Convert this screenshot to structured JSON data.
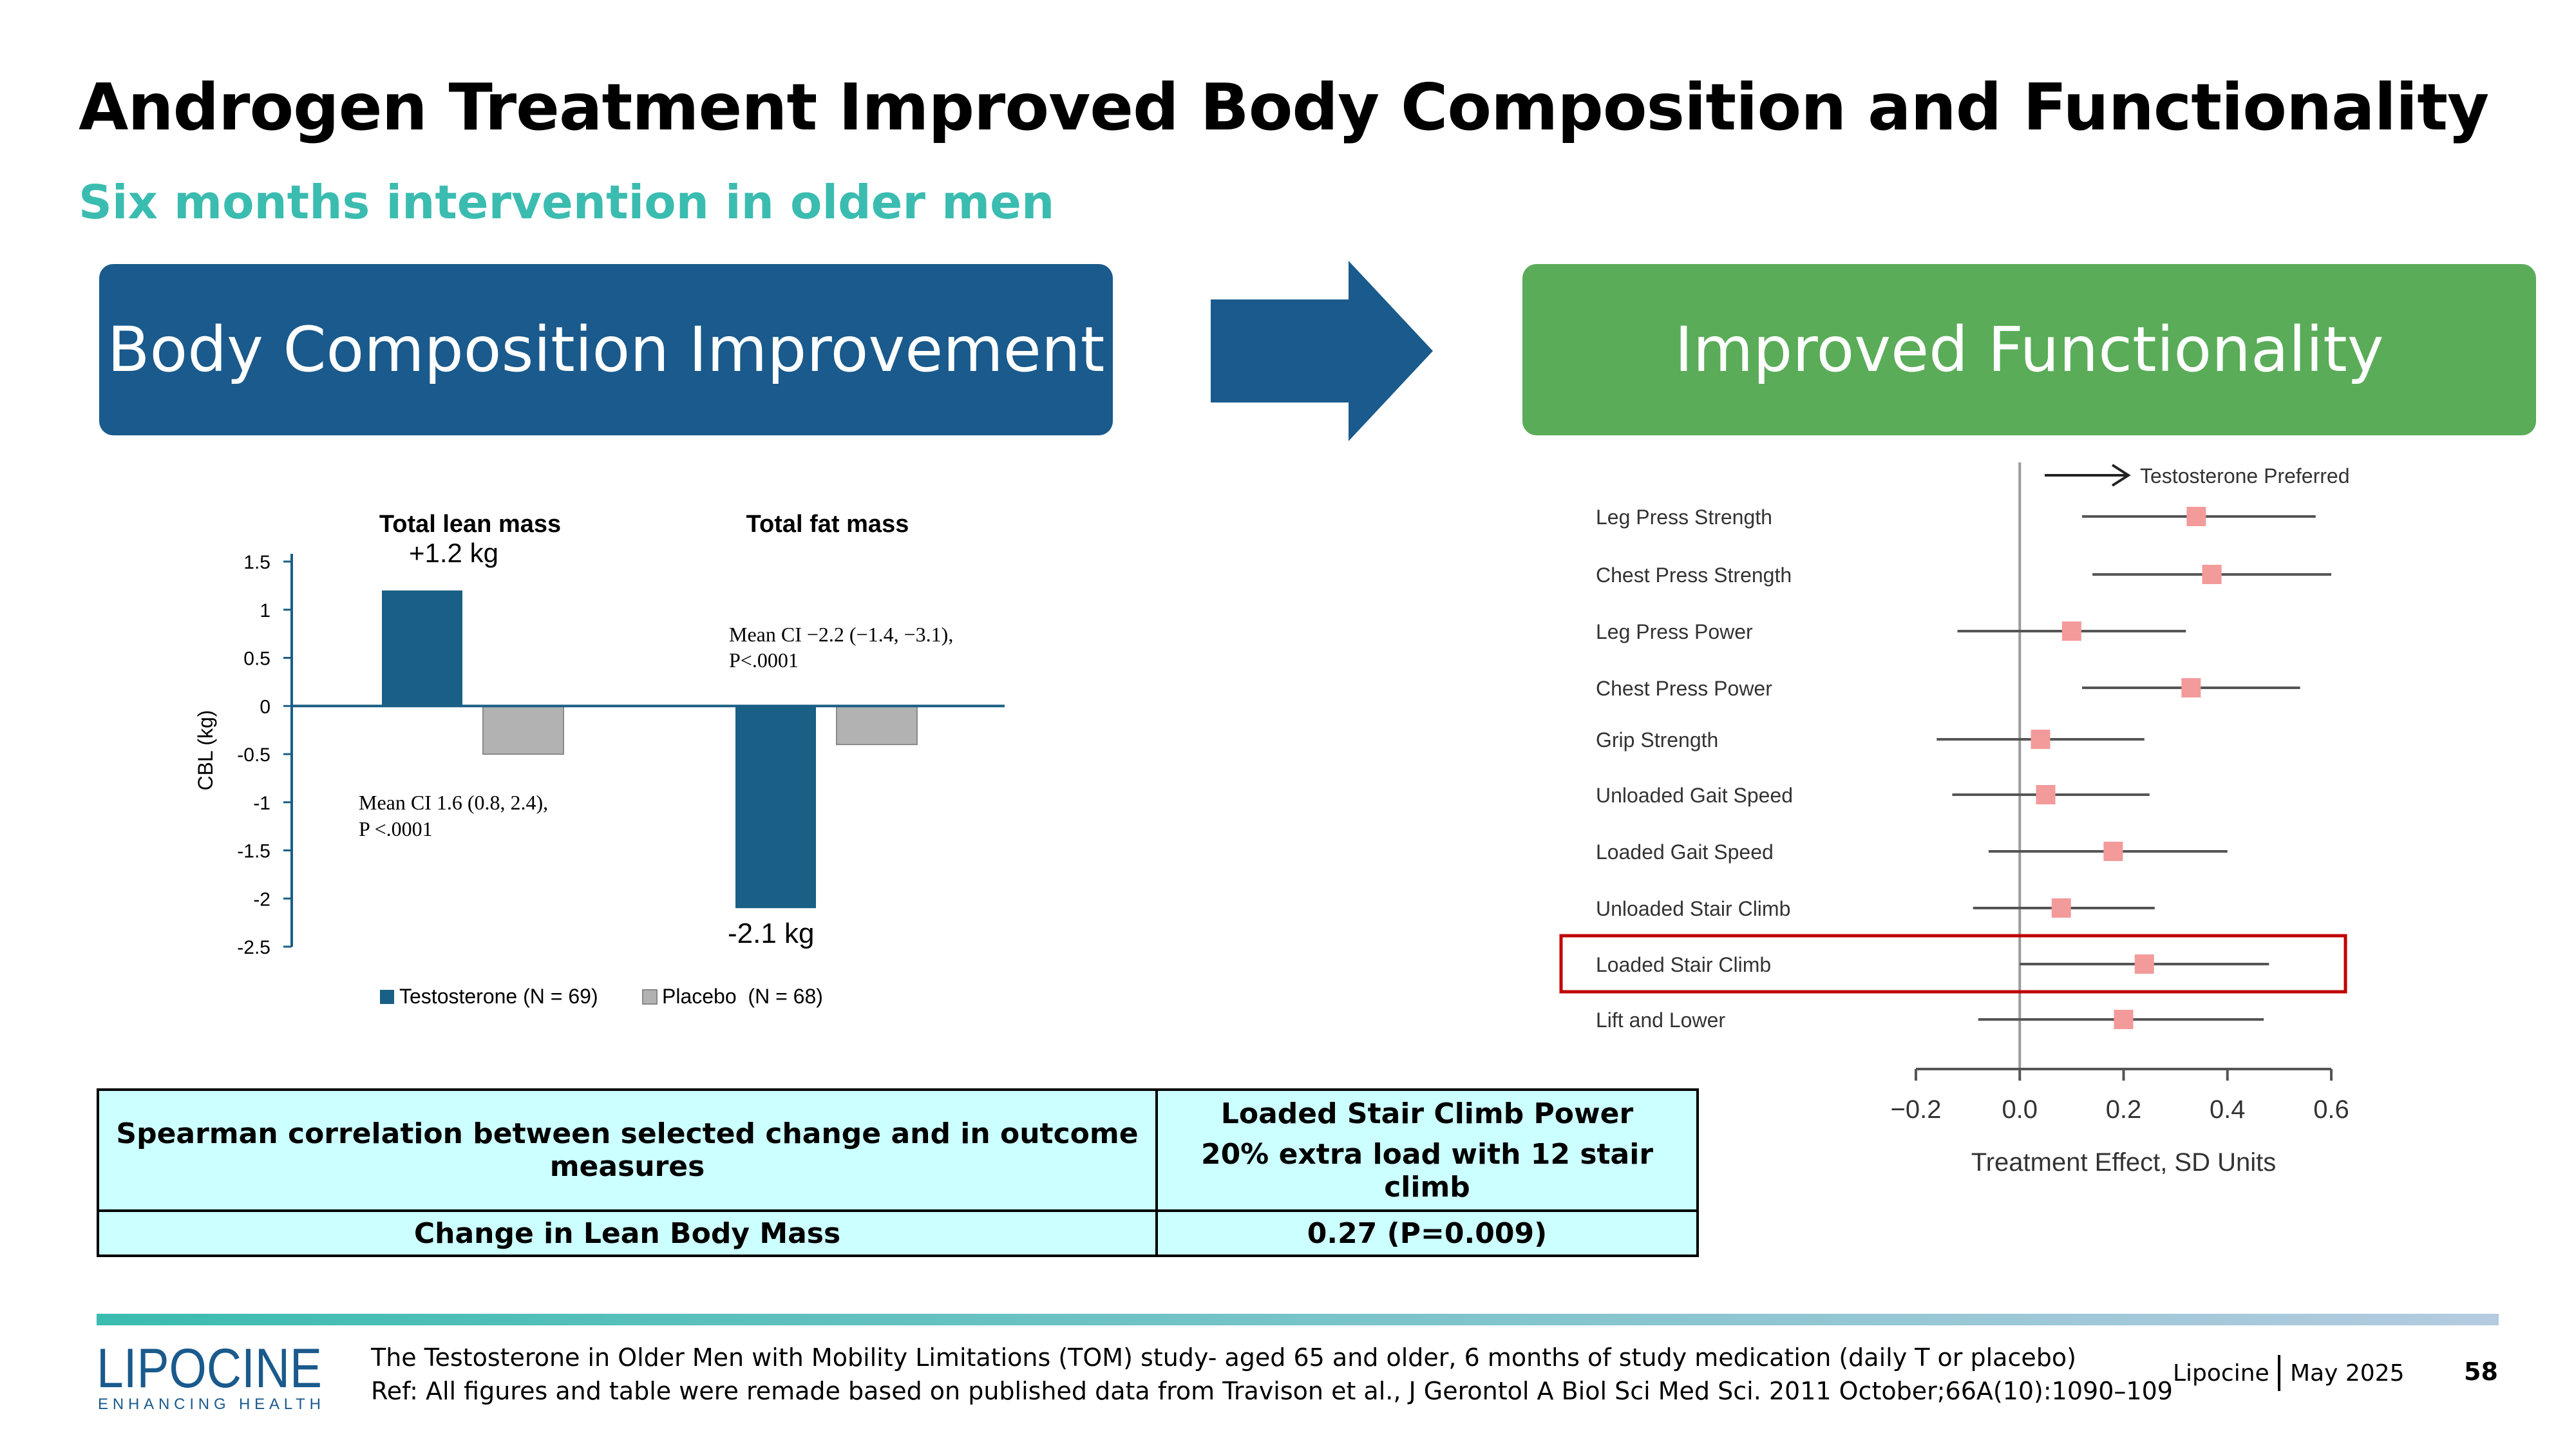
{
  "title": "Androgen Treatment Improved Body Composition and Functionality",
  "subtitle": "Six months intervention in older men",
  "banners": {
    "left": "Body Composition Improvement",
    "right": "Improved Functionality"
  },
  "colors": {
    "testosterone": "#1a5f85",
    "placebo": "#b2b2b2",
    "banner_left": "#1a5a8c",
    "banner_right": "#5aac58",
    "accent": "#3bbcb0",
    "forest_marker": "#f39a9a",
    "highlight_box": "#c00000"
  },
  "chart_data": [
    {
      "type": "bar",
      "categories": [
        "Total lean mass",
        "Total fat mass"
      ],
      "series": [
        {
          "name": "Testosterone (N = 69)",
          "values": [
            1.2,
            -2.1
          ]
        },
        {
          "name": "Placebo  (N = 68)",
          "values": [
            -0.5,
            -0.4
          ]
        }
      ],
      "ylabel": "CBL (kg)",
      "ylim": [
        -2.5,
        1.5
      ],
      "yticks": [
        "1.5",
        "1",
        "0.5",
        "0",
        "-0.5",
        "-1",
        "-1.5",
        "-2",
        "-2.5"
      ],
      "data_labels": [
        "+1.2 kg",
        "-2.1 kg"
      ],
      "annotations": [
        {
          "line1": "Mean CI 1.6 (0.8, 2.4),",
          "line2": "P <.0001"
        },
        {
          "line1": "Mean CI −2.2 (−1.4, −3.1),",
          "line2": "P<.0001"
        }
      ],
      "legend": "bottom"
    },
    {
      "type": "scatter",
      "subtype": "forest",
      "header": "Testosterone Preferred",
      "xlabel": "Treatment Effect, SD Units",
      "xlim": [
        -0.2,
        0.6
      ],
      "xticks": [
        "−0.2",
        "0.0",
        "0.2",
        "0.4",
        "0.6"
      ],
      "points": [
        {
          "label": "Leg Press Strength",
          "estimate": 0.34,
          "low": 0.12,
          "high": 0.57
        },
        {
          "label": "Chest Press Strength",
          "estimate": 0.37,
          "low": 0.14,
          "high": 0.6
        },
        {
          "label": "Leg Press Power",
          "estimate": 0.1,
          "low": -0.12,
          "high": 0.32
        },
        {
          "label": "Chest Press Power",
          "estimate": 0.33,
          "low": 0.12,
          "high": 0.54
        },
        {
          "label": "Grip Strength",
          "estimate": 0.04,
          "low": -0.16,
          "high": 0.24
        },
        {
          "label": "Unloaded Gait Speed",
          "estimate": 0.05,
          "low": -0.13,
          "high": 0.25
        },
        {
          "label": "Loaded Gait Speed",
          "estimate": 0.18,
          "low": -0.06,
          "high": 0.4
        },
        {
          "label": "Unloaded Stair Climb",
          "estimate": 0.08,
          "low": -0.09,
          "high": 0.26
        },
        {
          "label": "Loaded Stair Climb",
          "estimate": 0.24,
          "low": 0.0,
          "high": 0.48,
          "highlighted": true
        },
        {
          "label": "Lift and Lower",
          "estimate": 0.2,
          "low": -0.08,
          "high": 0.47
        }
      ]
    }
  ],
  "table": {
    "header_left": "Spearman correlation between selected change and in outcome measures",
    "header_right_line1": "Loaded Stair Climb Power",
    "header_right_line2": "20% extra load with 12 stair climb",
    "row_left": "Change in Lean Body Mass",
    "row_right": "0.27 (P=0.009)"
  },
  "footer": {
    "logo_text": "LIPOCINE",
    "logo_tagline": "ENHANCING HEALTH",
    "note_line1": "The Testosterone in Older Men with Mobility Limitations (TOM) study- aged 65 and older, 6 months of study medication (daily T or placebo)",
    "note_line2": "Ref: All figures and table were remade based on published data from Travison et al., J Gerontol A Biol Sci Med Sci. 2011 October;66A(10):1090–109",
    "company": "Lipocine",
    "date": "May 2025",
    "page": "58"
  }
}
